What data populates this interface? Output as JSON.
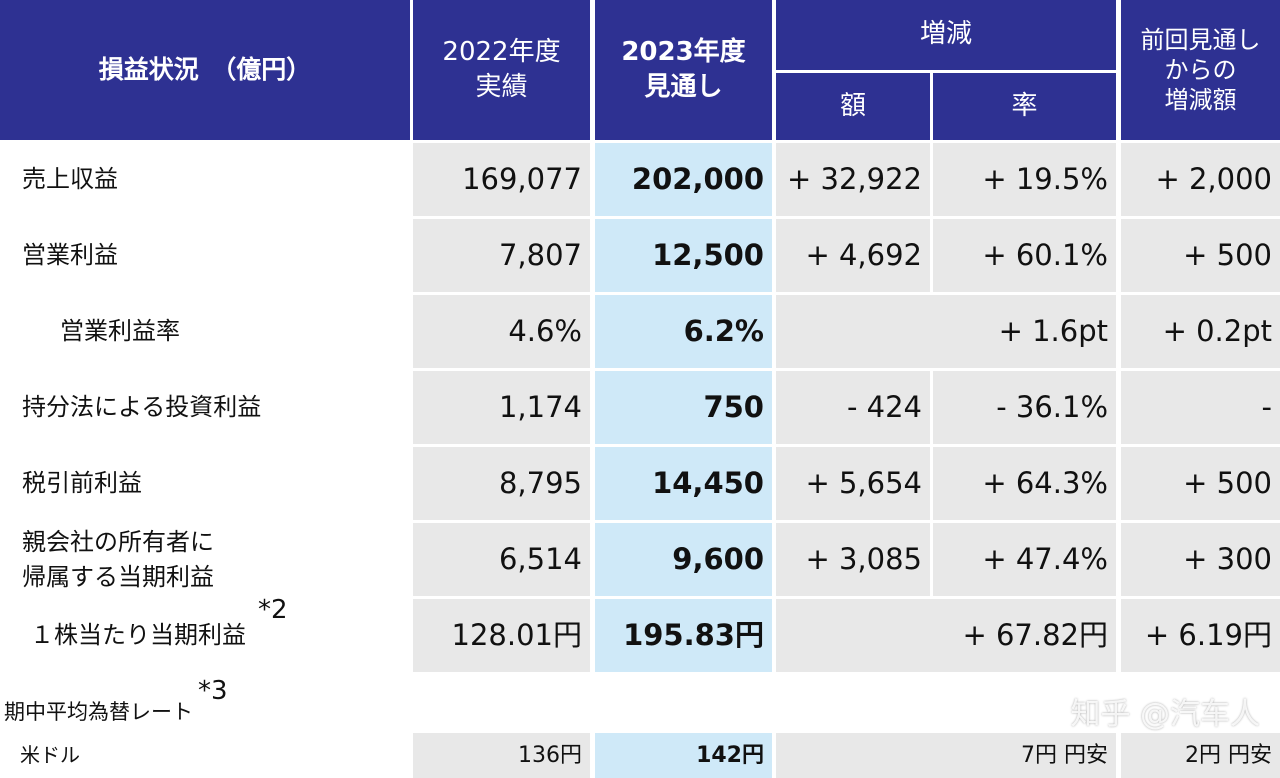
{
  "header": {
    "item": "損益状況　（億円）",
    "fy2022": [
      "2022年度",
      "実績"
    ],
    "fy2023": [
      "2023年度",
      "見通し"
    ],
    "change": "増減",
    "change_amount": "額",
    "change_rate": "率",
    "vs_previous": [
      "前回見通し",
      "からの",
      "増減額"
    ]
  },
  "rows": [
    {
      "label": [
        "売上収益"
      ],
      "values": [
        "169,077",
        "202,000",
        "+ 32,922",
        "+ 19.5%",
        "+ 2,000"
      ]
    },
    {
      "label": [
        "営業利益"
      ],
      "values": [
        "7,807",
        "12,500",
        "+ 4,692",
        "+ 60.1%",
        "+ 500"
      ]
    },
    {
      "label": [
        "営業利益率"
      ],
      "values": [
        "4.6%",
        "6.2%",
        null,
        "+ 1.6pt",
        "+ 0.2pt"
      ]
    },
    {
      "label": [
        "持分法による投資利益"
      ],
      "values": [
        "1,174",
        "750",
        "- 424",
        "- 36.1%",
        "-"
      ]
    },
    {
      "label": [
        "税引前利益"
      ],
      "values": [
        "8,795",
        "14,450",
        "+ 5,654",
        "+ 64.3%",
        "+ 500"
      ]
    },
    {
      "label": [
        "親会社の所有者に",
        "帰属する当期利益"
      ],
      "values": [
        "6,514",
        "9,600",
        "+ 3,085",
        "+ 47.4%",
        "+ 300"
      ]
    },
    {
      "label": [
        "１株当たり当期利益"
      ],
      "note": "*2",
      "values": [
        "128.01円",
        "195.83円",
        null,
        "+ 67.82円",
        "+ 6.19円"
      ]
    }
  ],
  "exchange": {
    "title": "期中平均為替レート",
    "note": "*3",
    "rows": [
      {
        "label": [
          "米ドル"
        ],
        "values": [
          "136円",
          "142円",
          null,
          "7円 円安",
          "2円 円安"
        ]
      }
    ]
  },
  "watermark": "知乎 @汽车人"
}
